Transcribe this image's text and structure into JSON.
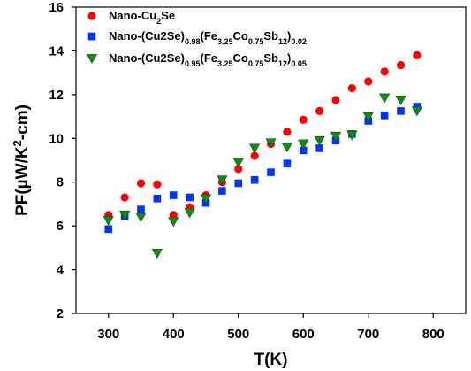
{
  "chart_data": {
    "type": "scatter",
    "xlabel": "T(K)",
    "ylabel": {
      "parts": [
        {
          "t": "PF("
        },
        {
          "t": "µ"
        },
        {
          "t": "W/K"
        },
        {
          "t": "2",
          "sup": true
        },
        {
          "t": "-cm)"
        }
      ]
    },
    "xlim": [
      250,
      850
    ],
    "ylim": [
      2,
      16
    ],
    "xticks": [
      300,
      400,
      500,
      600,
      700,
      800
    ],
    "yticks": [
      2,
      4,
      6,
      8,
      10,
      12,
      14,
      16
    ],
    "grid": false,
    "legend_position": "top-left",
    "series": [
      {
        "name": "Nano-Cu₂Se",
        "name_parts": [
          {
            "t": "Nano-Cu"
          },
          {
            "t": "2",
            "sub": true
          },
          {
            "t": "Se"
          }
        ],
        "marker": "circle",
        "color": "#ff0000",
        "points": [
          [
            300,
            6.5
          ],
          [
            325,
            7.3
          ],
          [
            350,
            7.95
          ],
          [
            375,
            7.9
          ],
          [
            400,
            6.5
          ],
          [
            425,
            6.85
          ],
          [
            450,
            7.4
          ],
          [
            475,
            8.0
          ],
          [
            500,
            8.6
          ],
          [
            525,
            9.2
          ],
          [
            550,
            9.75
          ],
          [
            575,
            10.3
          ],
          [
            600,
            10.85
          ],
          [
            625,
            11.25
          ],
          [
            650,
            11.75
          ],
          [
            675,
            12.3
          ],
          [
            700,
            12.6
          ],
          [
            725,
            13.05
          ],
          [
            750,
            13.35
          ],
          [
            775,
            13.8
          ]
        ]
      },
      {
        "name": "Nano-(Cu2Se)0.98(Fe3.25Co0.75Sb12)0.02",
        "name_parts": [
          {
            "t": "Nano-(Cu2Se)"
          },
          {
            "t": "0.98",
            "sub": true
          },
          {
            "t": "(Fe"
          },
          {
            "t": "3.25",
            "sub": true
          },
          {
            "t": "Co"
          },
          {
            "t": "0.75",
            "sub": true
          },
          {
            "t": "Sb"
          },
          {
            "t": "12",
            "sub": true
          },
          {
            "t": ")"
          },
          {
            "t": "0.02",
            "sub": true
          }
        ],
        "marker": "square",
        "color": "#0033ff",
        "points": [
          [
            300,
            5.85
          ],
          [
            325,
            6.45
          ],
          [
            350,
            6.75
          ],
          [
            375,
            7.25
          ],
          [
            400,
            7.4
          ],
          [
            425,
            7.3
          ],
          [
            450,
            7.05
          ],
          [
            475,
            7.6
          ],
          [
            500,
            7.95
          ],
          [
            525,
            8.1
          ],
          [
            550,
            8.45
          ],
          [
            575,
            8.85
          ],
          [
            600,
            9.45
          ],
          [
            625,
            9.55
          ],
          [
            650,
            9.9
          ],
          [
            675,
            10.2
          ],
          [
            700,
            10.8
          ],
          [
            725,
            11.05
          ],
          [
            750,
            11.25
          ],
          [
            775,
            11.45
          ]
        ]
      },
      {
        "name": "Nano-(Cu2Se)0.95(Fe3.25Co0.75Sb12)0.05",
        "name_parts": [
          {
            "t": "Nano-(Cu2Se)"
          },
          {
            "t": "0.95",
            "sub": true
          },
          {
            "t": "(Fe"
          },
          {
            "t": "3.25",
            "sub": true
          },
          {
            "t": "Co"
          },
          {
            "t": "0.75",
            "sub": true
          },
          {
            "t": "Sb"
          },
          {
            "t": "12",
            "sub": true
          },
          {
            "t": ")"
          },
          {
            "t": "0.05",
            "sub": true
          }
        ],
        "marker": "triangle-down",
        "color": "#138a13",
        "points": [
          [
            300,
            6.25
          ],
          [
            325,
            6.5
          ],
          [
            350,
            6.4
          ],
          [
            375,
            4.75
          ],
          [
            400,
            6.2
          ],
          [
            425,
            6.6
          ],
          [
            450,
            7.25
          ],
          [
            475,
            8.1
          ],
          [
            500,
            8.9
          ],
          [
            525,
            9.55
          ],
          [
            550,
            9.8
          ],
          [
            575,
            9.6
          ],
          [
            600,
            9.75
          ],
          [
            625,
            9.9
          ],
          [
            650,
            10.1
          ],
          [
            675,
            10.15
          ],
          [
            700,
            11.0
          ],
          [
            725,
            11.85
          ],
          [
            750,
            11.75
          ],
          [
            775,
            11.25
          ]
        ]
      }
    ]
  }
}
